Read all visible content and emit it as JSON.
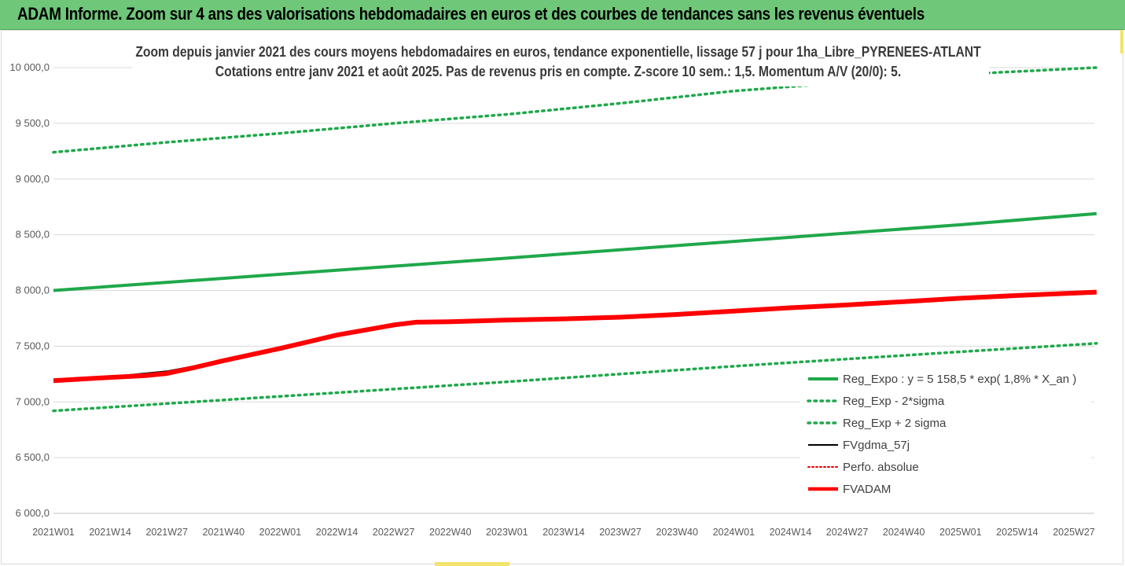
{
  "banner": {
    "title": "ADAM Informe. Zoom sur 4 ans des valorisations hebdomadaires en euros et des courbes de tendances sans les revenus éventuels"
  },
  "chart_title": {
    "line1": "Zoom depuis janvier 2021 des cours moyens hebdomadaires en euros, tendance exponentielle, lissage 57 j pour 1ha_Libre_PYRENEES-ATLANT",
    "line2": "Cotations entre janv 2021 et août 2025.  Pas de revenus pris en compte. Z-score 10 sem.: 1,5. Momentum A/V (20/0): 5."
  },
  "chart_data": {
    "type": "line",
    "ylim": [
      6000,
      10000
    ],
    "yticks": [
      "6 000,0",
      "6 500,0",
      "7 000,0",
      "7 500,0",
      "8 000,0",
      "8 500,0",
      "9 000,0",
      "9 500,0",
      "10 000,0"
    ],
    "ytick_values": [
      6000,
      6500,
      7000,
      7500,
      8000,
      8500,
      9000,
      9500,
      10000
    ],
    "x_categories": [
      "2021W01",
      "2021W14",
      "2021W27",
      "2021W40",
      "2022W01",
      "2022W14",
      "2022W27",
      "2022W40",
      "2023W01",
      "2023W14",
      "2023W27",
      "2023W40",
      "2024W01",
      "2024W14",
      "2024W27",
      "2024W40",
      "2025W01",
      "2025W14",
      "2025W27"
    ],
    "grid": true,
    "legend_position": "right",
    "series": [
      {
        "name": "Reg_Expo : y = 5 158,5 * exp( 1,8% *  X_an )",
        "color": "#1fa84a",
        "style": "solid",
        "width": 4,
        "points": [
          [
            0,
            8000
          ],
          [
            4,
            8145
          ],
          [
            8,
            8290
          ],
          [
            12,
            8440
          ],
          [
            16,
            8590
          ],
          [
            18.4,
            8690
          ]
        ]
      },
      {
        "name": "Reg_Exp - 2*sigma",
        "color": "#1fa84a",
        "style": "dotted",
        "width": 3.5,
        "points": [
          [
            0,
            6920
          ],
          [
            4,
            7050
          ],
          [
            8,
            7180
          ],
          [
            12,
            7320
          ],
          [
            16,
            7450
          ],
          [
            18.4,
            7525
          ]
        ]
      },
      {
        "name": "Reg_Exp + 2 sigma",
        "color": "#1fa84a",
        "style": "dotted",
        "width": 3.5,
        "points": [
          [
            0,
            9240
          ],
          [
            2,
            9330
          ],
          [
            4,
            9410
          ],
          [
            6,
            9500
          ],
          [
            8,
            9580
          ],
          [
            10,
            9680
          ],
          [
            12,
            9790
          ],
          [
            14.8,
            9900
          ],
          [
            16,
            9940
          ],
          [
            18.4,
            10000
          ]
        ]
      },
      {
        "name": "FVgdma_57j",
        "color": "#000000",
        "style": "solid",
        "width": 2,
        "points": [
          [
            0,
            7190
          ],
          [
            1,
            7225
          ],
          [
            2,
            7275
          ],
          [
            3,
            7370
          ],
          [
            4,
            7480
          ],
          [
            5,
            7610
          ],
          [
            6,
            7690
          ],
          [
            6.6,
            7720
          ],
          [
            7,
            7725
          ],
          [
            8,
            7735
          ],
          [
            9,
            7745
          ],
          [
            10,
            7760
          ],
          [
            11,
            7785
          ],
          [
            12,
            7815
          ],
          [
            13,
            7845
          ],
          [
            14,
            7870
          ],
          [
            15,
            7900
          ],
          [
            16,
            7930
          ],
          [
            17,
            7955
          ],
          [
            18.4,
            7985
          ]
        ]
      },
      {
        "name": "Perfo. absolue",
        "color": "#e60000",
        "style": "dotted",
        "width": 2,
        "points": []
      },
      {
        "name": "FVADAM",
        "color": "#ff0000",
        "style": "solid",
        "width": 6,
        "points": [
          [
            0,
            7190
          ],
          [
            1,
            7220
          ],
          [
            1.6,
            7235
          ],
          [
            2,
            7255
          ],
          [
            2.5,
            7310
          ],
          [
            3,
            7370
          ],
          [
            4,
            7480
          ],
          [
            5,
            7600
          ],
          [
            6,
            7690
          ],
          [
            6.4,
            7715
          ],
          [
            7,
            7720
          ],
          [
            8,
            7735
          ],
          [
            9,
            7745
          ],
          [
            10,
            7760
          ],
          [
            11,
            7785
          ],
          [
            12,
            7815
          ],
          [
            13,
            7845
          ],
          [
            14,
            7870
          ],
          [
            15,
            7900
          ],
          [
            16,
            7930
          ],
          [
            17,
            7955
          ],
          [
            18.4,
            7985
          ]
        ]
      }
    ]
  }
}
